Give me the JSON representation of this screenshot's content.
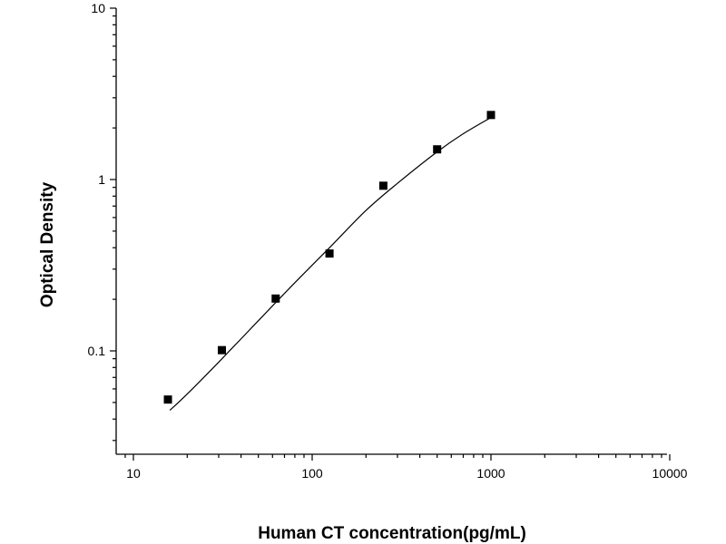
{
  "chart_data": {
    "type": "scatter",
    "xlabel": "Human CT concentration(pg/mL)",
    "ylabel": "Optical Density",
    "xscale": "log",
    "yscale": "log",
    "xlim": [
      8,
      10000
    ],
    "ylim": [
      0.025,
      10
    ],
    "grid": false,
    "legend": "none",
    "x_ticks": [
      {
        "value": 10,
        "label": "10"
      },
      {
        "value": 100,
        "label": "100"
      },
      {
        "value": 1000,
        "label": "1000"
      },
      {
        "value": 10000,
        "label": "10000"
      }
    ],
    "y_ticks": [
      {
        "value": 0.1,
        "label": "0.1"
      },
      {
        "value": 1,
        "label": "1"
      },
      {
        "value": 10,
        "label": "10"
      }
    ],
    "series": [
      {
        "marker": "square",
        "x": [
          15.6,
          31.25,
          62.5,
          125,
          250,
          500,
          1000
        ],
        "y": [
          0.052,
          0.101,
          0.202,
          0.37,
          0.92,
          1.5,
          2.38
        ]
      }
    ],
    "fit_curve": {
      "x": [
        16,
        20,
        30,
        50,
        80,
        125,
        200,
        300,
        500,
        700,
        1000
      ],
      "y": [
        0.045,
        0.056,
        0.086,
        0.15,
        0.25,
        0.4,
        0.66,
        0.95,
        1.45,
        1.85,
        2.3
      ]
    }
  }
}
